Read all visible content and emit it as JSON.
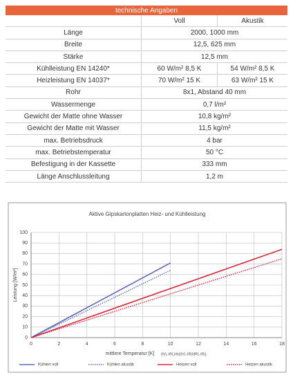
{
  "table": {
    "title": "technische Angaben",
    "header": [
      "Voll",
      "Akustik"
    ],
    "rows": [
      [
        "Länge",
        "2000, 1000 mm"
      ],
      [
        "Breite",
        "12,5, 625 mm"
      ],
      [
        "Stärke",
        "12,5 mm"
      ],
      [
        "Kühlleistung EN 14240*",
        "60 W/m² 8,5 K",
        "54 W/m² 8,5 K"
      ],
      [
        "Heizleistung EN 14037*",
        "70 W/m² 15 K",
        "63 W/m² 15 K"
      ],
      [
        "Rohr",
        "8x1, Abstand 40 mm"
      ],
      [
        "Wassermenge",
        "0,7 l/m²"
      ],
      [
        "Gewicht der Matte ohne Wasser",
        "10,8 kg/m²"
      ],
      [
        "Gewicht der Matte mit Wasser",
        "11,5 kg/m²"
      ],
      [
        "max. Betriebsdruck",
        "4 bar"
      ],
      [
        "max. Betriebstemperatur",
        "50 °C"
      ],
      [
        "Befestigung in der Kassette",
        "333 mm"
      ],
      [
        "Länge Anschlussleitung",
        "1,2 m"
      ]
    ]
  },
  "chart_data": {
    "type": "line",
    "title": "Aktive Gipskartonplatten Heiz- und Kühlleistung",
    "x_label": "mittlere Temperatur [K]",
    "x_label_note": "(tVL-tRL)/ln((tVL-tR)/(tRL-tR))",
    "y_label": "Leistung [W/m²]",
    "xlim": [
      0,
      18
    ],
    "xticks": [
      0,
      2,
      4,
      6,
      8,
      10,
      12,
      14,
      16,
      18
    ],
    "ylim": [
      0,
      100
    ],
    "yticks": [
      0,
      10,
      20,
      30,
      40,
      50,
      60,
      70,
      80,
      90,
      100
    ],
    "grid": true,
    "series": [
      {
        "name": "Kühlen voll",
        "color": "#5b67b8",
        "style": "solid",
        "x": [
          0,
          10
        ],
        "values": [
          0,
          71
        ]
      },
      {
        "name": "Kühlen akustik",
        "color": "#5b67b8",
        "style": "dotted",
        "x": [
          0,
          10
        ],
        "values": [
          0,
          64
        ]
      },
      {
        "name": "Heizen voll",
        "color": "#d9263a",
        "style": "solid",
        "x": [
          0,
          18
        ],
        "values": [
          0,
          84
        ]
      },
      {
        "name": "Heizen akustik",
        "color": "#d9263a",
        "style": "dotted",
        "x": [
          0,
          18
        ],
        "values": [
          0,
          75
        ]
      }
    ]
  }
}
